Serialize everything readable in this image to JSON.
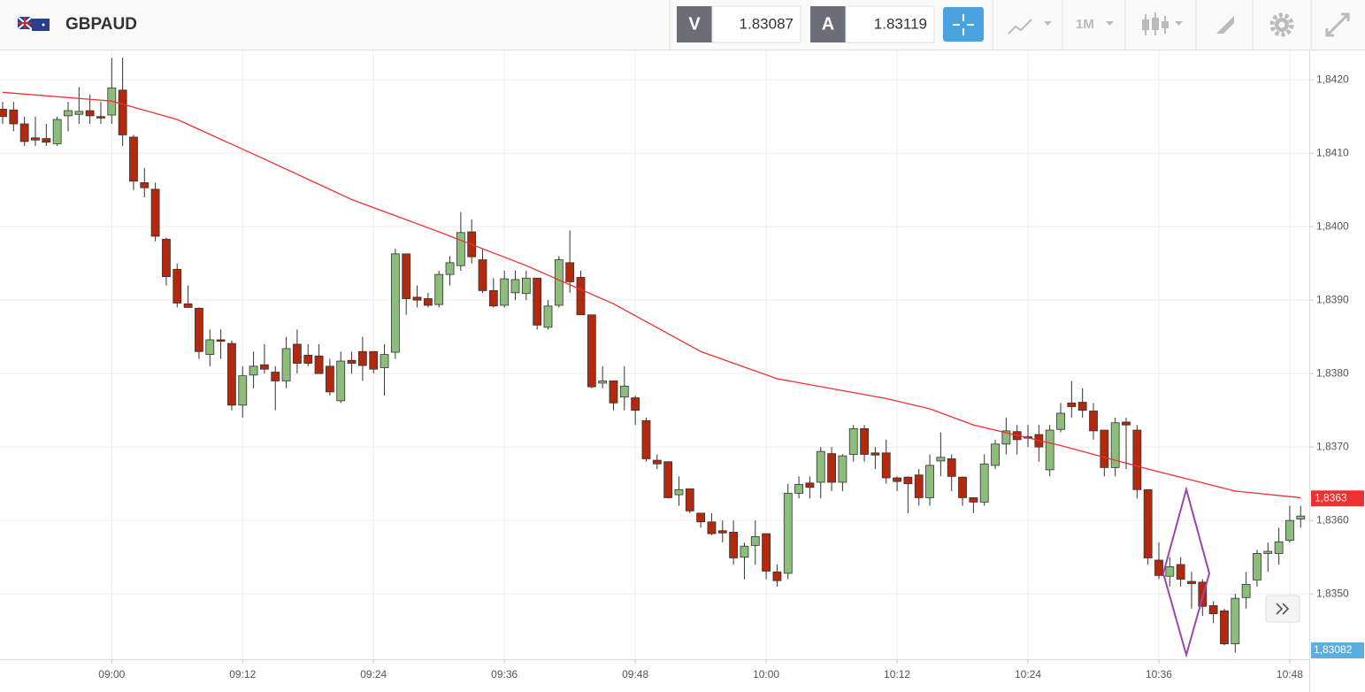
{
  "header": {
    "symbol": "GBPAUD",
    "bid_label": "V",
    "bid": 1.83087,
    "ask_label": "A",
    "ask": 1.83119,
    "timeframe": "1M"
  },
  "chart_data": {
    "type": "candlestick",
    "x": [
      "08:50",
      "08:51",
      "08:52",
      "08:53",
      "08:54",
      "08:55",
      "08:56",
      "08:57",
      "08:58",
      "08:59",
      "09:00",
      "09:01",
      "09:02",
      "09:03",
      "09:04",
      "09:05",
      "09:06",
      "09:07",
      "09:08",
      "09:09",
      "09:10",
      "09:11",
      "09:12",
      "09:13",
      "09:14",
      "09:15",
      "09:16",
      "09:17",
      "09:18",
      "09:19",
      "09:20",
      "09:21",
      "09:22",
      "09:23",
      "09:24",
      "09:25",
      "09:26",
      "09:27",
      "09:28",
      "09:29",
      "09:30",
      "09:31",
      "09:32",
      "09:33",
      "09:34",
      "09:35",
      "09:36",
      "09:37",
      "09:38",
      "09:39",
      "09:40",
      "09:41",
      "09:42",
      "09:43",
      "09:44",
      "09:45",
      "09:46",
      "09:47",
      "09:48",
      "09:49",
      "09:50",
      "09:51",
      "09:52",
      "09:53",
      "09:54",
      "09:55",
      "09:56",
      "09:57",
      "09:58",
      "09:59",
      "10:00",
      "10:01",
      "10:02",
      "10:03",
      "10:04",
      "10:05",
      "10:06",
      "10:07",
      "10:08",
      "10:09",
      "10:10",
      "10:11",
      "10:12",
      "10:13",
      "10:14",
      "10:15",
      "10:16",
      "10:17",
      "10:18",
      "10:19",
      "10:20",
      "10:21",
      "10:22",
      "10:23",
      "10:24",
      "10:25",
      "10:26",
      "10:27",
      "10:28",
      "10:29",
      "10:30",
      "10:31",
      "10:32",
      "10:33",
      "10:34",
      "10:35",
      "10:36",
      "10:37",
      "10:38",
      "10:39",
      "10:40",
      "10:41",
      "10:42",
      "10:43",
      "10:44",
      "10:45",
      "10:46",
      "10:47",
      "10:48",
      "10:49"
    ],
    "open": [
      1.8416,
      1.84159,
      1.8414,
      1.84121,
      1.8412,
      1.84113,
      1.84151,
      1.84153,
      1.84158,
      1.8415,
      1.84152,
      1.84186,
      1.84122,
      1.8406,
      1.84051,
      1.83983,
      1.83942,
      1.83895,
      1.83889,
      1.83826,
      1.83846,
      1.83841,
      1.83757,
      1.83798,
      1.83812,
      1.83802,
      1.8379,
      1.8384,
      1.83825,
      1.83824,
      1.8381,
      1.83763,
      1.83818,
      1.8383,
      1.8383,
      1.83808,
      1.83829,
      1.83963,
      1.83904,
      1.83902,
      1.83894,
      1.83935,
      1.83947,
      1.83993,
      1.83955,
      1.83913,
      1.83893,
      1.8391,
      1.83909,
      1.8393,
      1.83863,
      1.83893,
      1.83951,
      1.83931,
      1.8388,
      1.83787,
      1.8379,
      1.83768,
      1.83767,
      1.83736,
      1.83682,
      1.8368,
      1.83635,
      1.83643,
      1.8361,
      1.83598,
      1.83586,
      1.83584,
      1.8355,
      1.83566,
      1.83582,
      1.8353,
      1.83528,
      1.83637,
      1.83651,
      1.83652,
      1.83691,
      1.83652,
      1.8369,
      1.83725,
      1.83692,
      1.83692,
      1.83658,
      1.83659,
      1.83662,
      1.83631,
      1.83681,
      1.83684,
      1.83659,
      1.83631,
      1.83625,
      1.83675,
      1.83704,
      1.83721,
      1.83714,
      1.83717,
      1.83669,
      1.83724,
      1.8376,
      1.83761,
      1.83749,
      1.83723,
      1.83672,
      1.83734,
      1.83723,
      1.83642,
      1.83546,
      1.83524,
      1.8354,
      1.83517,
      1.83516,
      1.83484,
      1.83477,
      1.83432,
      1.83495,
      1.83519,
      1.83555,
      1.83555,
      1.83573,
      1.83602
    ],
    "high": [
      1.8417,
      1.8417,
      1.8415,
      1.8415,
      1.8414,
      1.8415,
      1.8417,
      1.8419,
      1.8418,
      1.8417,
      1.8423,
      1.8423,
      1.84125,
      1.8408,
      1.8406,
      1.83985,
      1.8395,
      1.8392,
      1.8389,
      1.8386,
      1.8386,
      1.83845,
      1.8381,
      1.8383,
      1.8384,
      1.8381,
      1.8385,
      1.8386,
      1.8384,
      1.8384,
      1.8382,
      1.8383,
      1.8383,
      1.8385,
      1.8383,
      1.8384,
      1.8397,
      1.8396,
      1.8392,
      1.8391,
      1.8394,
      1.8396,
      1.8402,
      1.8401,
      1.8397,
      1.8393,
      1.8394,
      1.8394,
      1.8394,
      1.8393,
      1.839,
      1.8396,
      1.83995,
      1.8394,
      1.8388,
      1.8381,
      1.8379,
      1.8381,
      1.8377,
      1.8374,
      1.8369,
      1.8368,
      1.8366,
      1.8364,
      1.8361,
      1.8361,
      1.836,
      1.836,
      1.8357,
      1.836,
      1.8358,
      1.8354,
      1.8365,
      1.8366,
      1.8366,
      1.837,
      1.837,
      1.8369,
      1.8373,
      1.8373,
      1.837,
      1.8371,
      1.8366,
      1.8366,
      1.8367,
      1.8369,
      1.8372,
      1.8369,
      1.8366,
      1.8363,
      1.8369,
      1.8371,
      1.8374,
      1.8373,
      1.8373,
      1.8373,
      1.8373,
      1.8376,
      1.8379,
      1.8378,
      1.8376,
      1.8372,
      1.8374,
      1.8374,
      1.8373,
      1.8364,
      1.8357,
      1.8355,
      1.8355,
      1.8353,
      1.8352,
      1.8349,
      1.8348,
      1.835,
      1.8353,
      1.8356,
      1.8357,
      1.8359,
      1.8362,
      1.8362
    ],
    "low": [
      1.8414,
      1.8413,
      1.8411,
      1.8411,
      1.8411,
      1.8411,
      1.8413,
      1.8414,
      1.8414,
      1.8414,
      1.8414,
      1.8411,
      1.8405,
      1.8404,
      1.8398,
      1.8392,
      1.8389,
      1.8389,
      1.8382,
      1.8381,
      1.8382,
      1.8375,
      1.8374,
      1.8378,
      1.838,
      1.8375,
      1.8378,
      1.838,
      1.8381,
      1.838,
      1.8377,
      1.8376,
      1.838,
      1.8379,
      1.838,
      1.8377,
      1.8382,
      1.8388,
      1.8389,
      1.8389,
      1.8389,
      1.8392,
      1.8394,
      1.8395,
      1.8391,
      1.8389,
      1.8389,
      1.839,
      1.839,
      1.8386,
      1.8386,
      1.8389,
      1.8391,
      1.8388,
      1.8378,
      1.8378,
      1.8375,
      1.8375,
      1.8373,
      1.8368,
      1.8367,
      1.8363,
      1.8362,
      1.8361,
      1.8359,
      1.8358,
      1.8357,
      1.8354,
      1.8352,
      1.8354,
      1.8352,
      1.8351,
      1.8352,
      1.8363,
      1.8363,
      1.8363,
      1.8364,
      1.8364,
      1.8368,
      1.8368,
      1.8367,
      1.8365,
      1.8364,
      1.8361,
      1.8362,
      1.8362,
      1.8366,
      1.8364,
      1.8362,
      1.8361,
      1.8362,
      1.8367,
      1.8369,
      1.8369,
      1.837,
      1.8368,
      1.8366,
      1.8372,
      1.8374,
      1.8374,
      1.8371,
      1.8366,
      1.8366,
      1.8367,
      1.8363,
      1.8354,
      1.8352,
      1.8351,
      1.8351,
      1.8348,
      1.8347,
      1.8346,
      1.8343,
      1.8342,
      1.8348,
      1.8351,
      1.8353,
      1.8354,
      1.8357,
      1.8359
    ],
    "close": [
      1.8415,
      1.8414,
      1.84116,
      1.84118,
      1.84115,
      1.84146,
      1.84158,
      1.84157,
      1.84151,
      1.84148,
      1.84189,
      1.84125,
      1.84062,
      1.84053,
      1.83987,
      1.83932,
      1.83896,
      1.8389,
      1.8383,
      1.83846,
      1.83844,
      1.83757,
      1.83797,
      1.8381,
      1.83806,
      1.8379,
      1.83834,
      1.83814,
      1.83814,
      1.838,
      1.83775,
      1.83817,
      1.83814,
      1.83811,
      1.83806,
      1.83826,
      1.83963,
      1.83902,
      1.839,
      1.83893,
      1.83935,
      1.83951,
      1.83992,
      1.83959,
      1.83913,
      1.83892,
      1.83929,
      1.83928,
      1.8393,
      1.83866,
      1.83892,
      1.83955,
      1.83925,
      1.8388,
      1.83782,
      1.8379,
      1.8376,
      1.83783,
      1.8375,
      1.83684,
      1.83677,
      1.83631,
      1.83642,
      1.83613,
      1.83598,
      1.83582,
      1.83583,
      1.83549,
      1.83565,
      1.83578,
      1.83531,
      1.83518,
      1.83637,
      1.83649,
      1.83645,
      1.83694,
      1.83652,
      1.83688,
      1.83725,
      1.8369,
      1.83689,
      1.83658,
      1.83653,
      1.8365,
      1.83631,
      1.83675,
      1.83686,
      1.8366,
      1.83631,
      1.83625,
      1.83677,
      1.83704,
      1.83722,
      1.8371,
      1.83712,
      1.837,
      1.83723,
      1.83746,
      1.83755,
      1.8375,
      1.83722,
      1.83672,
      1.83733,
      1.8373,
      1.83642,
      1.83549,
      1.83525,
      1.83537,
      1.8352,
      1.83514,
      1.83483,
      1.83473,
      1.83432,
      1.83494,
      1.83513,
      1.83555,
      1.83558,
      1.83571,
      1.836,
      1.83606
    ],
    "up_color": "#8dbd7b",
    "down_color": "#b3290d",
    "moving_average": {
      "color": "#f03030",
      "x": [
        "08:50",
        "09:00",
        "09:06",
        "09:14",
        "09:22",
        "09:30",
        "09:38",
        "09:46",
        "09:54",
        "10:01",
        "10:11",
        "10:15",
        "10:19",
        "10:27",
        "10:35",
        "10:43",
        "10:49"
      ],
      "values": [
        1.84183,
        1.84171,
        1.84146,
        1.84092,
        1.84037,
        1.83993,
        1.83947,
        1.83895,
        1.8383,
        1.83793,
        1.83766,
        1.83752,
        1.8373,
        1.83702,
        1.8367,
        1.8364,
        1.83631
      ]
    },
    "ma_label": {
      "value": 1.8363,
      "label": "1,8363"
    },
    "price_label": {
      "value": 1.83082,
      "label": "1,83082"
    },
    "ylim": [
      1.83411,
      1.8424
    ],
    "yticks": [
      {
        "value": 1.835,
        "label": "1,8350"
      },
      {
        "value": 1.836,
        "label": "1,8360"
      },
      {
        "value": 1.837,
        "label": "1,8370"
      },
      {
        "value": 1.838,
        "label": "1,8380"
      },
      {
        "value": 1.839,
        "label": "1,8390"
      },
      {
        "value": 1.84,
        "label": "1,8400"
      },
      {
        "value": 1.841,
        "label": "1,8410"
      },
      {
        "value": 1.842,
        "label": "1,8420"
      }
    ],
    "xticks": [
      "09:00",
      "09:12",
      "09:24",
      "09:36",
      "09:48",
      "10:00",
      "10:12",
      "10:24",
      "10:36",
      "10:48"
    ],
    "grid": true
  }
}
